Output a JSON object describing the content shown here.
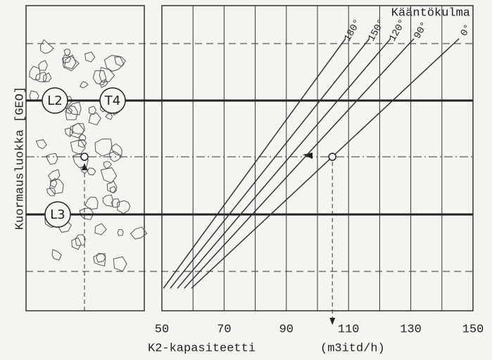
{
  "chart_data": {
    "type": "line",
    "x_label": "K2-kapasiteetti",
    "x_unit": "(m3itd/h)",
    "y_label": "Kuormausluokka [GEO]",
    "legend_title": "Kääntökulma",
    "xlim": [
      50,
      150
    ],
    "xticks": [
      50,
      70,
      90,
      110,
      130,
      150
    ],
    "xminor": [
      60,
      80,
      100,
      120,
      140
    ],
    "classes": [
      "L2",
      "T4",
      "L3"
    ],
    "series": [
      {
        "name": "180°",
        "color": "#333333",
        "x": [
          50.5,
          109
        ]
      },
      {
        "name": "150°",
        "color": "#333333",
        "x": [
          52.7,
          116.7
        ]
      },
      {
        "name": "120°",
        "color": "#333333",
        "x": [
          55,
          123.5
        ]
      },
      {
        "name": "90°",
        "color": "#333333",
        "x": [
          57.2,
          131
        ]
      },
      {
        "name": "0°",
        "color": "#333333",
        "x": [
          59.5,
          145.5
        ]
      }
    ],
    "reading": {
      "x": 104.8
    }
  }
}
